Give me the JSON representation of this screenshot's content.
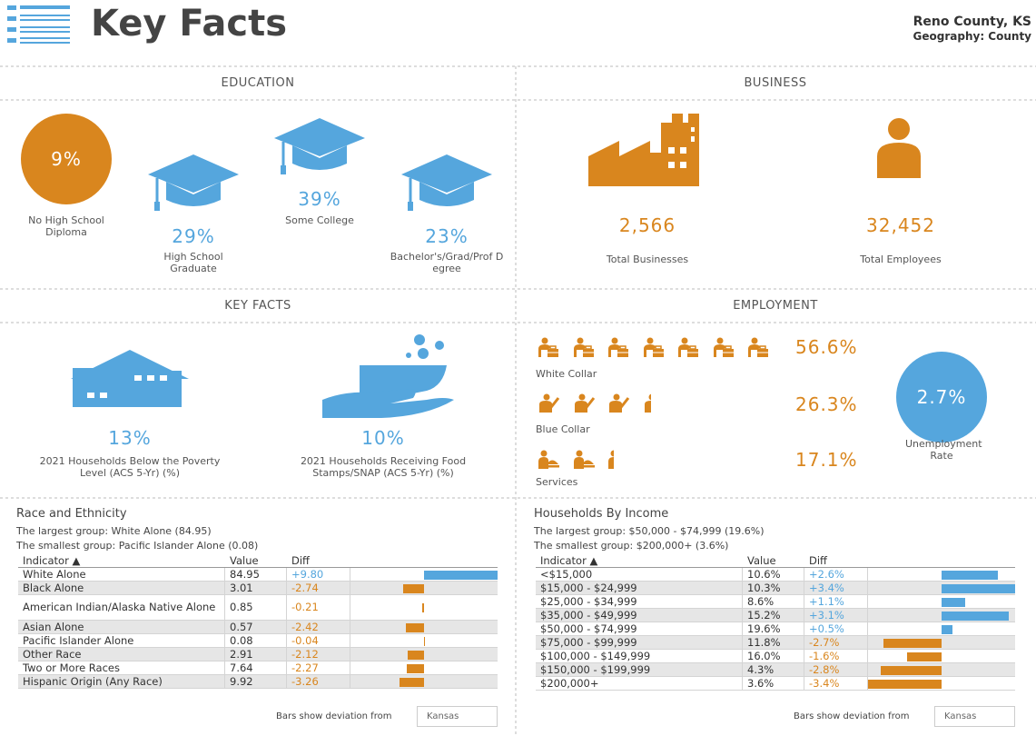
{
  "header": {
    "title": "Key Facts",
    "location": "Reno County, KS",
    "geography": "Geography: County"
  },
  "education": {
    "title": "EDUCATION",
    "items": [
      {
        "value": "9%",
        "label": "No High School Diploma"
      },
      {
        "value": "29%",
        "label": "High School Graduate"
      },
      {
        "value": "39%",
        "label": "Some College"
      },
      {
        "value": "23%",
        "label": "Bachelor's/Grad/Prof Degree"
      }
    ]
  },
  "business": {
    "title": "BUSINESS",
    "items": [
      {
        "value": "2,566",
        "label": "Total Businesses"
      },
      {
        "value": "32,452",
        "label": "Total Employees"
      }
    ]
  },
  "key_facts": {
    "title": "KEY FACTS",
    "items": [
      {
        "value": "13%",
        "label": "2021 Households Below the Poverty Level (ACS 5-Yr) (%)"
      },
      {
        "value": "10%",
        "label": "2021 Households Receiving Food Stamps/SNAP (ACS 5-Yr) (%)"
      }
    ]
  },
  "employment": {
    "title": "EMPLOYMENT",
    "items": [
      {
        "value": "56.6%",
        "label": "White Collar"
      },
      {
        "value": "26.3%",
        "label": "Blue Collar"
      },
      {
        "value": "17.1%",
        "label": "Services"
      }
    ],
    "unemployment": {
      "value": "2.7%",
      "label": "Unemployment Rate"
    }
  },
  "race": {
    "title": "Race and Ethnicity",
    "largest": "The largest group: White Alone (84.95)",
    "smallest": "The smallest group: Pacific Islander Alone (0.08)",
    "columns": [
      "Indicator ▲",
      "Value",
      "Diff"
    ],
    "rows": [
      {
        "indicator": "White Alone",
        "value": "84.95",
        "diff": 9.8,
        "diff_label": "+9.80"
      },
      {
        "indicator": "Black Alone",
        "value": "3.01",
        "diff": -2.74
      },
      {
        "indicator": "American Indian/Alaska Native Alone",
        "value": "0.85",
        "diff": -0.21
      },
      {
        "indicator": "Asian Alone",
        "value": "0.57",
        "diff": -2.42
      },
      {
        "indicator": "Pacific Islander Alone",
        "value": "0.08",
        "diff": -0.04
      },
      {
        "indicator": "Other Race",
        "value": "2.91",
        "diff": -2.12
      },
      {
        "indicator": "Two or More Races",
        "value": "7.64",
        "diff": -2.27
      },
      {
        "indicator": "Hispanic Origin (Any Race)",
        "value": "9.92",
        "diff": -3.26
      }
    ],
    "note": "Bars show deviation from",
    "compare": "Kansas"
  },
  "income": {
    "title": "Households By Income",
    "largest": "The largest group: $50,000 - $74,999 (19.6%)",
    "smallest": "The smallest group: $200,000+ (3.6%)",
    "columns": [
      "Indicator ▲",
      "Value",
      "Diff"
    ],
    "rows": [
      {
        "indicator": "<$15,000",
        "value": "10.6%",
        "diff": 2.6,
        "diff_label": "+2.6%"
      },
      {
        "indicator": "$15,000 - $24,999",
        "value": "10.3%",
        "diff": 3.4,
        "diff_label": "+3.4%"
      },
      {
        "indicator": "$25,000 - $34,999",
        "value": "8.6%",
        "diff": 1.1,
        "diff_label": "+1.1%"
      },
      {
        "indicator": "$35,000 - $49,999",
        "value": "15.2%",
        "diff": 3.1,
        "diff_label": "+3.1%"
      },
      {
        "indicator": "$50,000 - $74,999",
        "value": "19.6%",
        "diff": 0.5,
        "diff_label": "+0.5%"
      },
      {
        "indicator": "$75,000 - $99,999",
        "value": "11.8%",
        "diff": -2.7,
        "diff_label": "-2.7%"
      },
      {
        "indicator": "$100,000 - $149,999",
        "value": "16.0%",
        "diff": -1.6,
        "diff_label": "-1.6%"
      },
      {
        "indicator": "$150,000 - $199,999",
        "value": "4.3%",
        "diff": -2.8,
        "diff_label": "-2.8%"
      },
      {
        "indicator": "$200,000+",
        "value": "3.6%",
        "diff": -3.4,
        "diff_label": "-3.4%"
      }
    ],
    "note": "Bars show deviation from",
    "compare": "Kansas"
  }
}
